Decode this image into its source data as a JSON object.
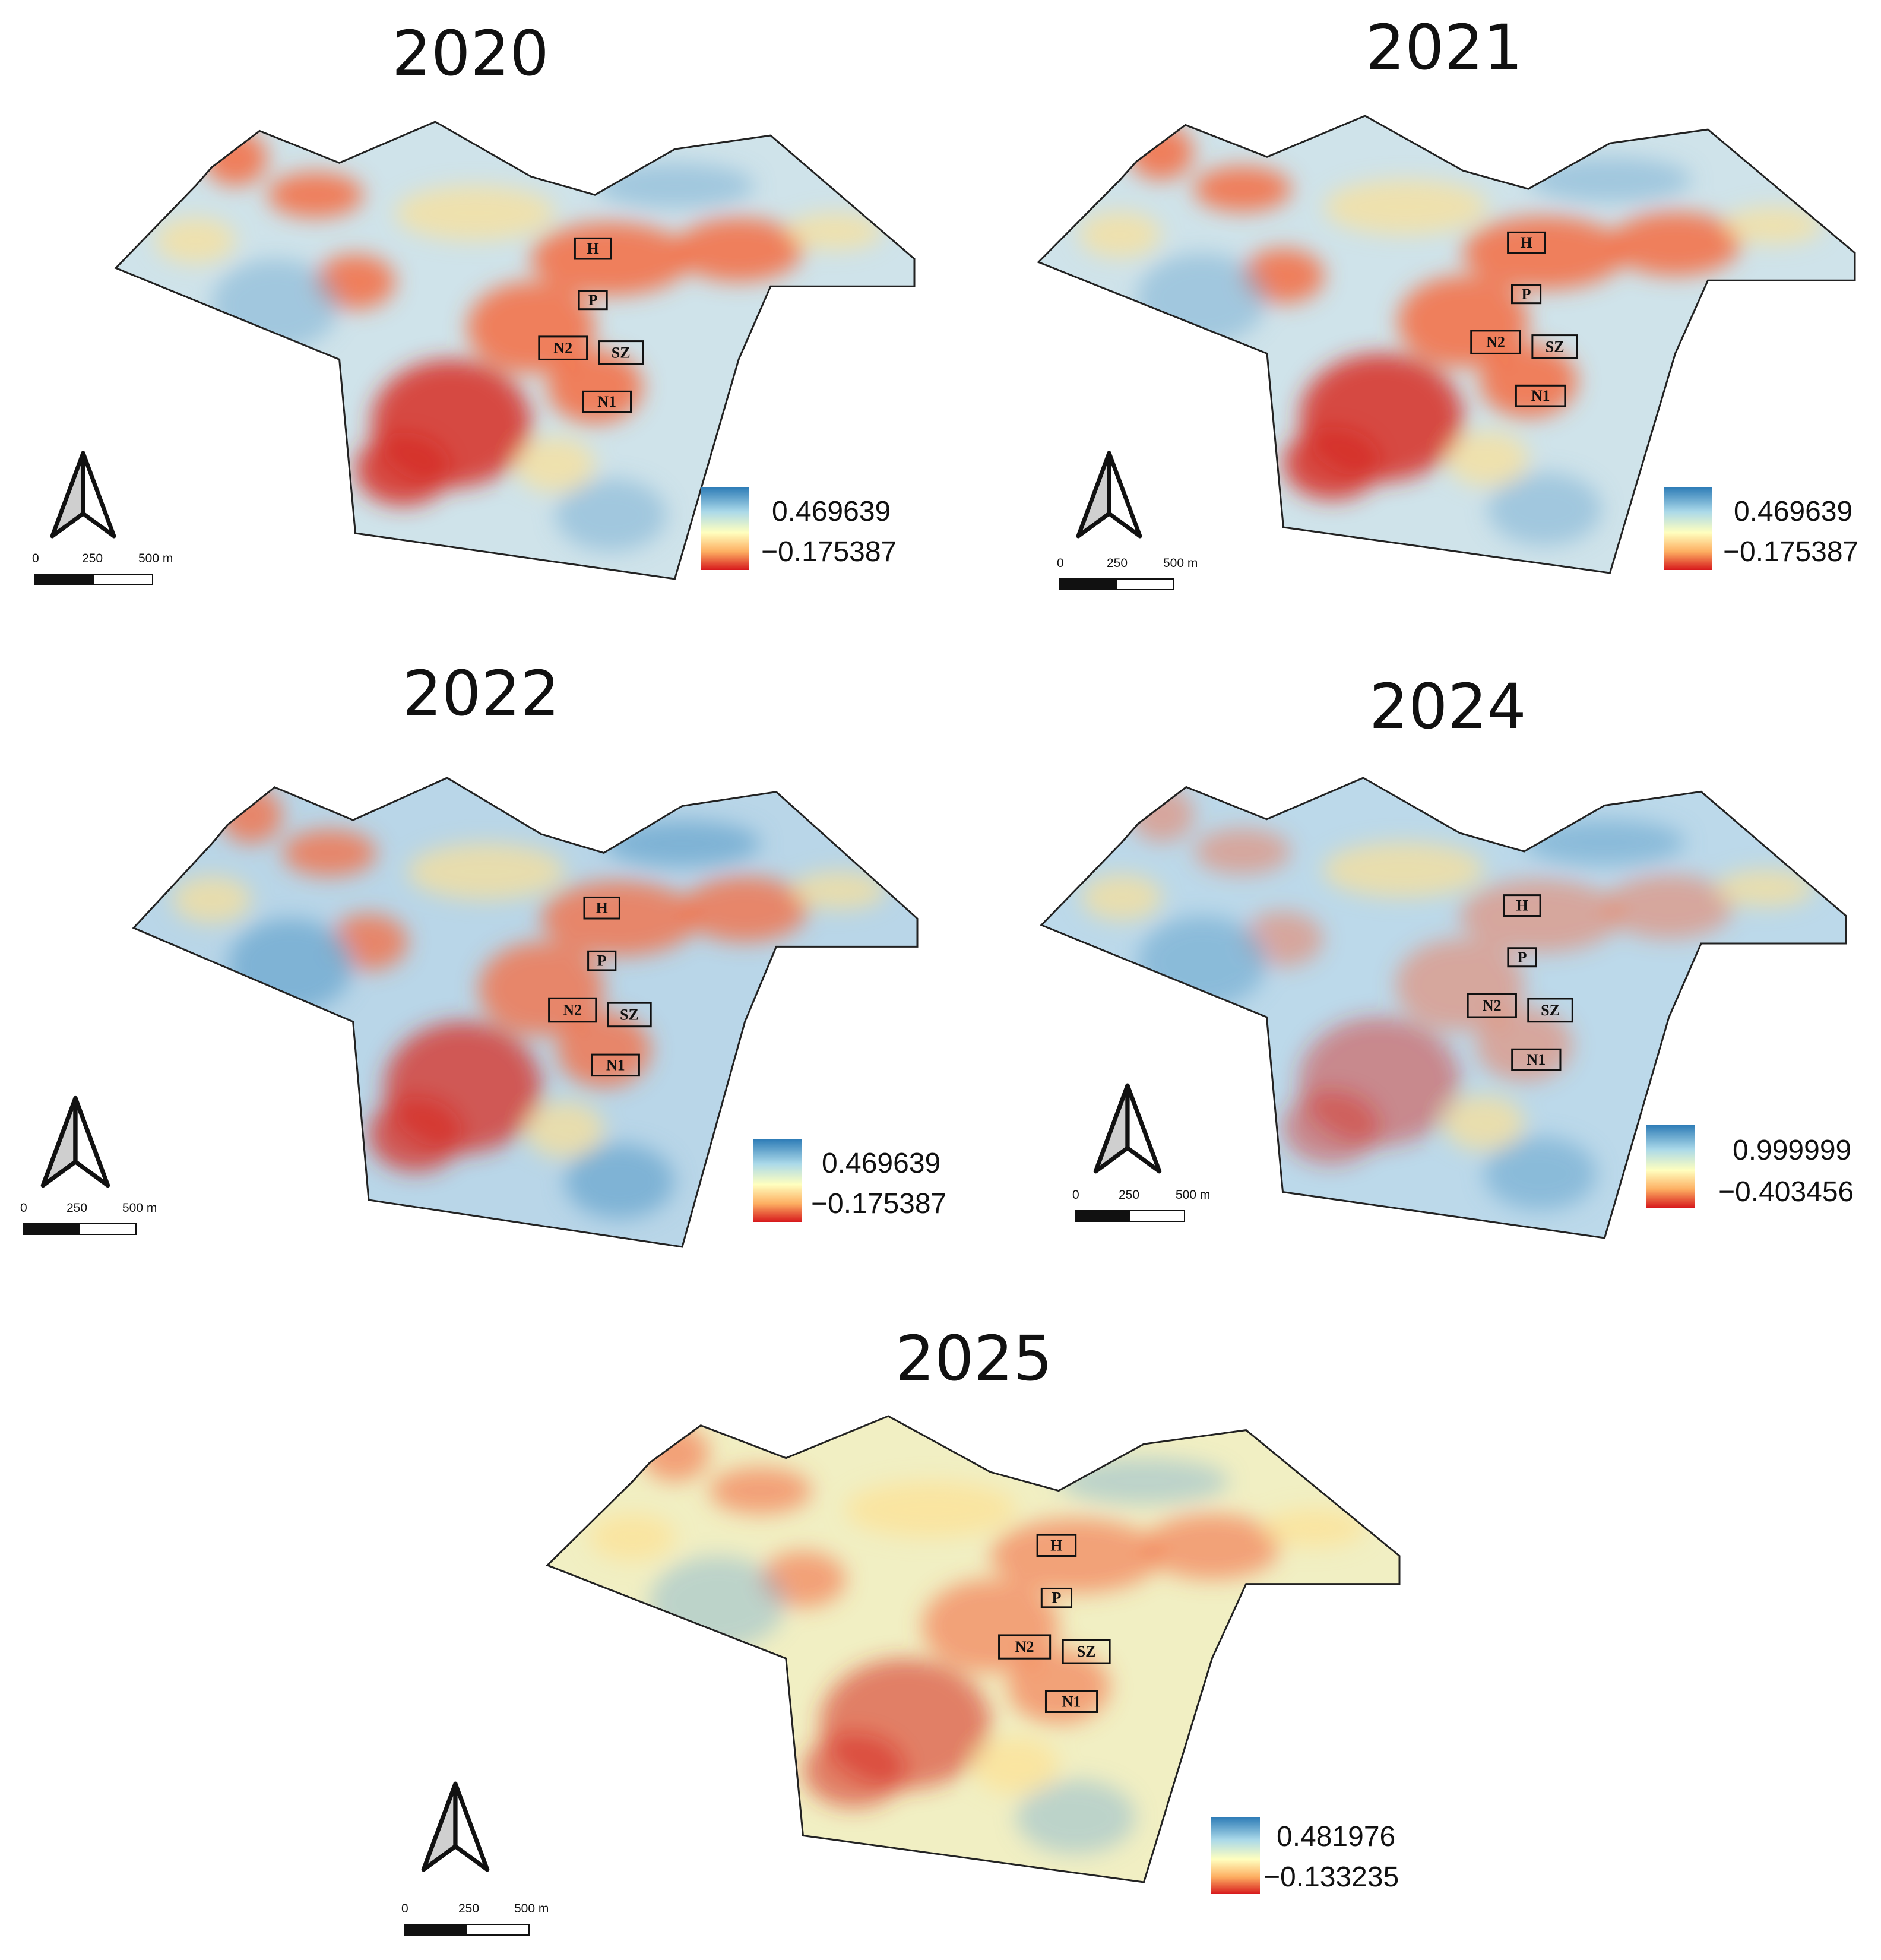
{
  "panels": [
    {
      "title": "2020",
      "legend": {
        "max": "0.469639",
        "min": "−0.175387"
      },
      "scale": {
        "t0": "0",
        "t1": "250",
        "t2": "500 m"
      },
      "sites": [
        "H",
        "P",
        "N2",
        "SZ",
        "N1"
      ]
    },
    {
      "title": "2021",
      "legend": {
        "max": "0.469639",
        "min": "−0.175387"
      },
      "scale": {
        "t0": "0",
        "t1": "250",
        "t2": "500 m"
      },
      "sites": [
        "H",
        "P",
        "N2",
        "SZ",
        "N1"
      ]
    },
    {
      "title": "2022",
      "legend": {
        "max": "0.469639",
        "min": "−0.175387"
      },
      "scale": {
        "t0": "0",
        "t1": "250",
        "t2": "500 m"
      },
      "sites": [
        "H",
        "P",
        "N2",
        "SZ",
        "N1"
      ]
    },
    {
      "title": "2024",
      "legend": {
        "max": "0.999999",
        "min": "−0.403456"
      },
      "scale": {
        "t0": "0",
        "t1": "250",
        "t2": "500 m"
      },
      "sites": [
        "H",
        "P",
        "N2",
        "SZ",
        "N1"
      ]
    },
    {
      "title": "2025",
      "legend": {
        "max": "0.481976",
        "min": "−0.133235"
      },
      "scale": {
        "t0": "0",
        "t1": "250",
        "t2": "500 m"
      },
      "sites": [
        "H",
        "P",
        "N2",
        "SZ",
        "N1"
      ]
    }
  ],
  "colors": {
    "high": "#2c7bb6",
    "mid": "#ffffbf",
    "low": "#d7191c",
    "outline": "#222222"
  },
  "icons": {
    "north_arrow": "north-arrow-icon"
  }
}
